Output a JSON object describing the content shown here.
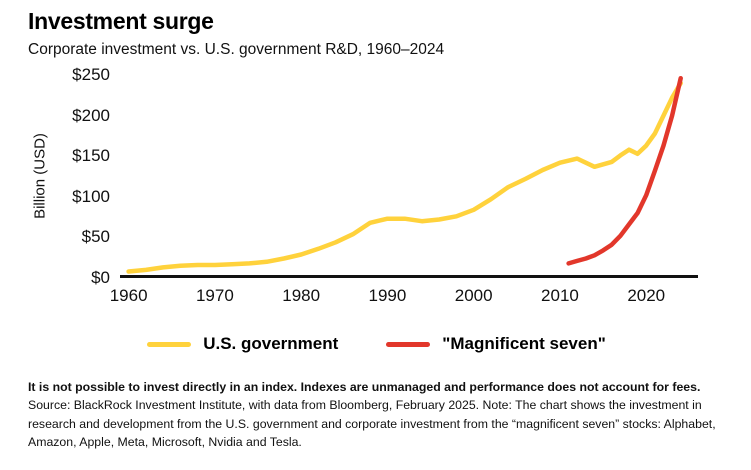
{
  "header": {
    "title": "Investment surge",
    "subtitle": "Corporate investment vs. U.S. government R&D, 1960–2024"
  },
  "chart_data": {
    "type": "line",
    "title": "Investment surge",
    "subtitle": "Corporate investment vs. U.S. government R&D, 1960–2024",
    "xlabel": "",
    "ylabel": "Billion (USD)",
    "ylim": [
      0,
      250
    ],
    "xlim": [
      1959,
      2026
    ],
    "grid": false,
    "legend_position": "bottom",
    "y_ticks": [
      "$250",
      "$200",
      "$150",
      "$100",
      "$50",
      "$0"
    ],
    "y_tick_values": [
      250,
      200,
      150,
      100,
      50,
      0
    ],
    "x_ticks": [
      1960,
      1970,
      1980,
      1990,
      2000,
      2010,
      2020
    ],
    "series": [
      {
        "name": "U.S. government",
        "key": "us-government-line",
        "color": "#FFD23C",
        "x": [
          1960,
          1962,
          1964,
          1966,
          1968,
          1970,
          1972,
          1974,
          1976,
          1978,
          1980,
          1982,
          1984,
          1986,
          1988,
          1990,
          1992,
          1994,
          1996,
          1998,
          2000,
          2002,
          2004,
          2006,
          2008,
          2010,
          2012,
          2014,
          2016,
          2017,
          2018,
          2019,
          2020,
          2021,
          2022,
          2023,
          2024
        ],
        "values": [
          8,
          10,
          13,
          15,
          16,
          16,
          17,
          18,
          20,
          24,
          29,
          36,
          44,
          54,
          68,
          73,
          73,
          70,
          72,
          76,
          84,
          97,
          112,
          122,
          133,
          142,
          147,
          137,
          143,
          151,
          158,
          153,
          163,
          178,
          200,
          222,
          240
        ]
      },
      {
        "name": "\"Magnificent seven\"",
        "key": "magnificent-seven-line",
        "color": "#E2372B",
        "x": [
          2011,
          2012,
          2013,
          2014,
          2015,
          2016,
          2017,
          2018,
          2019,
          2020,
          2021,
          2022,
          2023,
          2024
        ],
        "values": [
          18,
          21,
          24,
          28,
          34,
          41,
          52,
          66,
          80,
          102,
          132,
          163,
          200,
          246
        ]
      }
    ]
  },
  "legend": {
    "items": [
      {
        "label": "U.S. government"
      },
      {
        "label": "\"Magnificent seven\""
      }
    ]
  },
  "footnote": {
    "bold": "It is not possible to invest directly in an index. Indexes are unmanaged and performance does not account for fees.",
    "rest": " Source: BlackRock Investment Institute, with data from Bloomberg, February 2025. Note: The chart shows the investment in research and development from the U.S. government and corporate investment from the “magnificent seven” stocks: Alphabet, Amazon, Apple, Meta, Microsoft, Nvidia and Tesla."
  }
}
